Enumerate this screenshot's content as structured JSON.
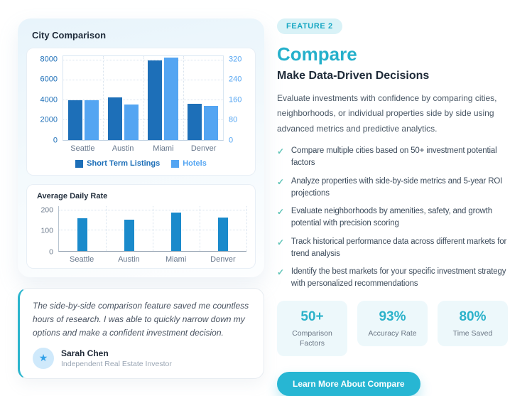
{
  "icons": {
    "star": "★",
    "check": "✓"
  },
  "colors": {
    "accent_teal": "#27b6d3",
    "badge_bg": "#d9f2f7",
    "badge_text": "#17a7c3",
    "series_dark_blue": "#1d6fb8",
    "series_light_blue": "#54a5f2",
    "daily_rate_blue": "#1a8acb",
    "check_teal": "#5fc4b7"
  },
  "comparison_card": {
    "title": "City Comparison"
  },
  "testimonial": {
    "quote": "The side-by-side comparison feature saved me countless hours of research. I was able to quickly narrow down my options and make a confident investment decision.",
    "name": "Sarah Chen",
    "role": "Independent Real Estate Investor"
  },
  "feature": {
    "badge": "FEATURE 2",
    "title": "Compare",
    "subtitle": "Make Data-Driven Decisions",
    "description": "Evaluate investments with confidence by comparing cities, neighborhoods, or individual properties side by side using advanced metrics and predictive analytics.",
    "checklist": [
      "Compare multiple cities based on 50+ investment potential factors",
      "Analyze properties with side-by-side metrics and 5-year ROI projections",
      "Evaluate neighborhoods by amenities, safety, and growth potential with precision scoring",
      "Track historical performance data across different markets for trend analysis",
      "Identify the best markets for your specific investment strategy with personalized recommendations"
    ],
    "stats": [
      {
        "value": "50+",
        "label": "Comparison Factors"
      },
      {
        "value": "93%",
        "label": "Accuracy Rate"
      },
      {
        "value": "80%",
        "label": "Time Saved"
      }
    ],
    "cta_label": "Learn More About Compare"
  },
  "chart_data": [
    {
      "type": "bar",
      "title": "City Comparison",
      "categories": [
        "Seattle",
        "Austin",
        "Miami",
        "Denver"
      ],
      "series": [
        {
          "name": "Short Term Listings",
          "axis": "left",
          "color": "#1d6fb8",
          "values": [
            4000,
            4250,
            8000,
            3650
          ]
        },
        {
          "name": "Hotels",
          "axis": "right",
          "color": "#54a5f2",
          "values": [
            160,
            142,
            330,
            138
          ]
        }
      ],
      "axes": {
        "left": {
          "ticks": [
            0,
            2000,
            4000,
            6000,
            8000
          ],
          "max": 8400,
          "color": "#1d6fb8"
        },
        "right": {
          "ticks": [
            0,
            80,
            160,
            240,
            320
          ],
          "max": 336,
          "color": "#54a5f2"
        }
      },
      "grid": true,
      "legend_position": "bottom"
    },
    {
      "type": "bar",
      "title": "Average Daily Rate",
      "categories": [
        "Seattle",
        "Austin",
        "Miami",
        "Denver"
      ],
      "series": [
        {
          "name": "Average Daily Rate",
          "axis": "left",
          "color": "#1a8acb",
          "values": [
            160,
            155,
            190,
            165
          ]
        }
      ],
      "axes": {
        "left": {
          "ticks": [
            0,
            100,
            200
          ],
          "max": 220,
          "color": "#6b7a8c"
        }
      },
      "grid": true,
      "legend_position": "none"
    }
  ]
}
